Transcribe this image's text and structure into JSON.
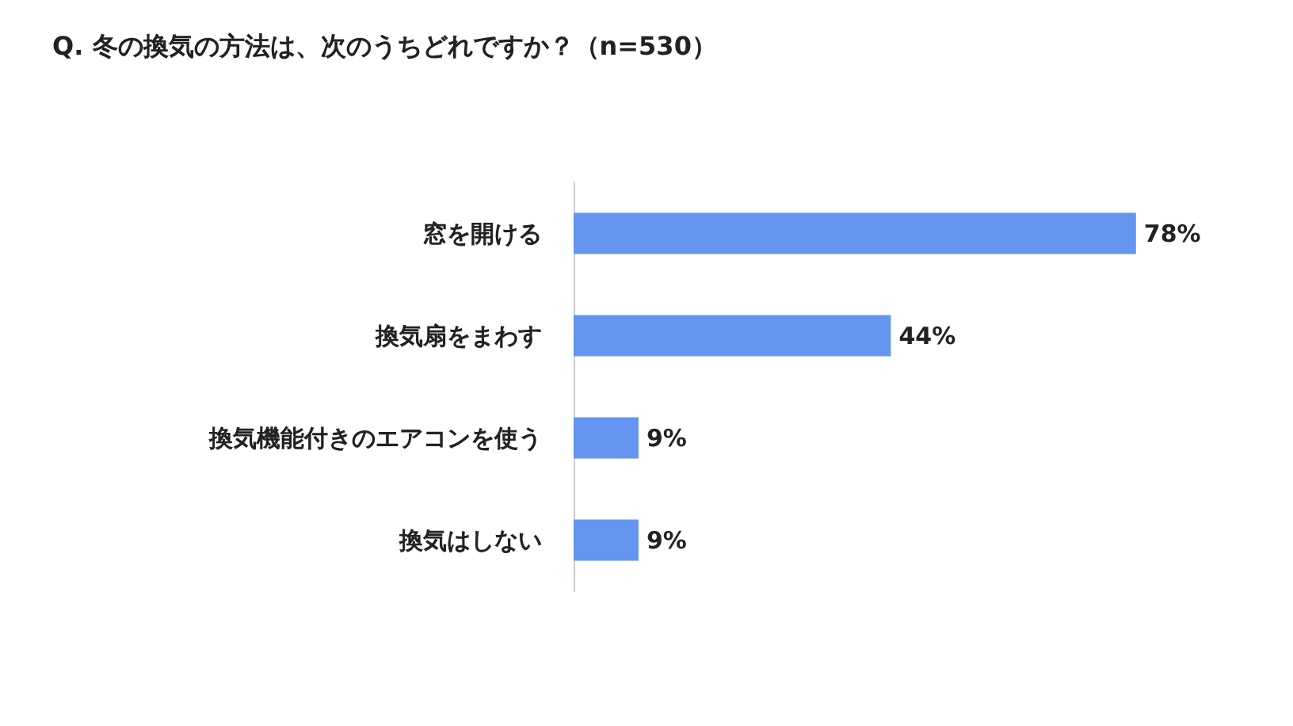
{
  "chart_data": {
    "type": "bar",
    "orientation": "horizontal",
    "title": "Q. 冬の換気の方法は、次のうちどれですか？（n=530）",
    "categories": [
      "窓を開ける",
      "換気扇をまわす",
      "換気機能付きのエアコンを使う",
      "換気はしない"
    ],
    "values": [
      78,
      44,
      9,
      9
    ],
    "value_labels": [
      "78%",
      "44%",
      "9%",
      "9%"
    ],
    "color": "#6495f0",
    "tick_labels": "y"
  }
}
